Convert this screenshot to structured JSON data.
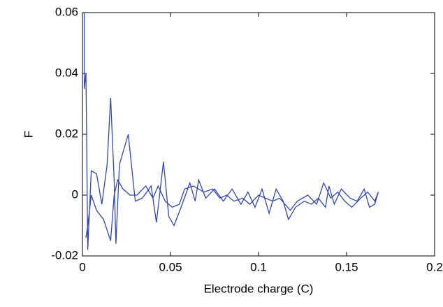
{
  "chart_data": {
    "type": "line",
    "x_label": "Electrode charge (C)",
    "y_label": "F",
    "xlim": [
      0,
      0.2
    ],
    "xticks": [
      0,
      0.05,
      0.1,
      0.15,
      0.2
    ],
    "ylim": [
      -0.02,
      0.06
    ],
    "yticks": [
      0.06,
      0.04,
      0.02,
      0,
      -0.02
    ],
    "grid": false,
    "series": [
      {
        "color": "#3346b0",
        "x": [
          0.001,
          0.001,
          0.002,
          0.003,
          0.005,
          0.008,
          0.011,
          0.014,
          0.016,
          0.018,
          0.019,
          0.021,
          0.026,
          0.03,
          0.034,
          0.039,
          0.042,
          0.046,
          0.049,
          0.052,
          0.056,
          0.061,
          0.064,
          0.066,
          0.07,
          0.075,
          0.08,
          0.085,
          0.09,
          0.094,
          0.098,
          0.102,
          0.106,
          0.11,
          0.114,
          0.117,
          0.121,
          0.126,
          0.13,
          0.134,
          0.138,
          0.14,
          0.143,
          0.147,
          0.152,
          0.156,
          0.16,
          0.163,
          0.166,
          0.168,
          0.166,
          0.162,
          0.158,
          0.153,
          0.149,
          0.145,
          0.141,
          0.137,
          0.133,
          0.128,
          0.122,
          0.118,
          0.112,
          0.108,
          0.104,
          0.1,
          0.095,
          0.091,
          0.086,
          0.082,
          0.078,
          0.074,
          0.069,
          0.063,
          0.058,
          0.055,
          0.051,
          0.047,
          0.043,
          0.04,
          0.036,
          0.031,
          0.027,
          0.023,
          0.02,
          0.018,
          0.016,
          0.012,
          0.008,
          0.005,
          0.003,
          0.002
        ],
        "values": [
          0.06,
          0.035,
          0.04,
          -0.018,
          0.008,
          0.007,
          -0.003,
          0.01,
          0.032,
          0.005,
          -0.016,
          0.01,
          0.02,
          -0.002,
          -0.001,
          0.003,
          -0.009,
          0.011,
          -0.007,
          -0.01,
          -0.004,
          0.004,
          -0.002,
          0.005,
          -0.001,
          0.002,
          -0.002,
          0.002,
          -0.003,
          0.001,
          -0.004,
          0.002,
          -0.006,
          0.002,
          -0.002,
          -0.008,
          -0.004,
          -0.002,
          -0.003,
          -0.001,
          -0.004,
          0.003,
          -0.003,
          0.002,
          -0.001,
          -0.002,
          0.002,
          -0.004,
          -0.003,
          0.001,
          -0.002,
          0.001,
          -0.001,
          -0.004,
          -0.002,
          0.001,
          -0.001,
          0.004,
          -0.003,
          0,
          -0.002,
          -0.005,
          -0.001,
          -0.002,
          -0.001,
          0,
          -0.003,
          -0.001,
          -0.002,
          0,
          -0.001,
          0.002,
          0.001,
          0.003,
          0.002,
          -0.003,
          -0.004,
          -0.002,
          0.003,
          -0.001,
          0.003,
          0,
          0,
          0.002,
          0.005,
          0,
          -0.015,
          -0.008,
          -0.005,
          0,
          -0.01,
          -0.014
        ]
      }
    ]
  }
}
